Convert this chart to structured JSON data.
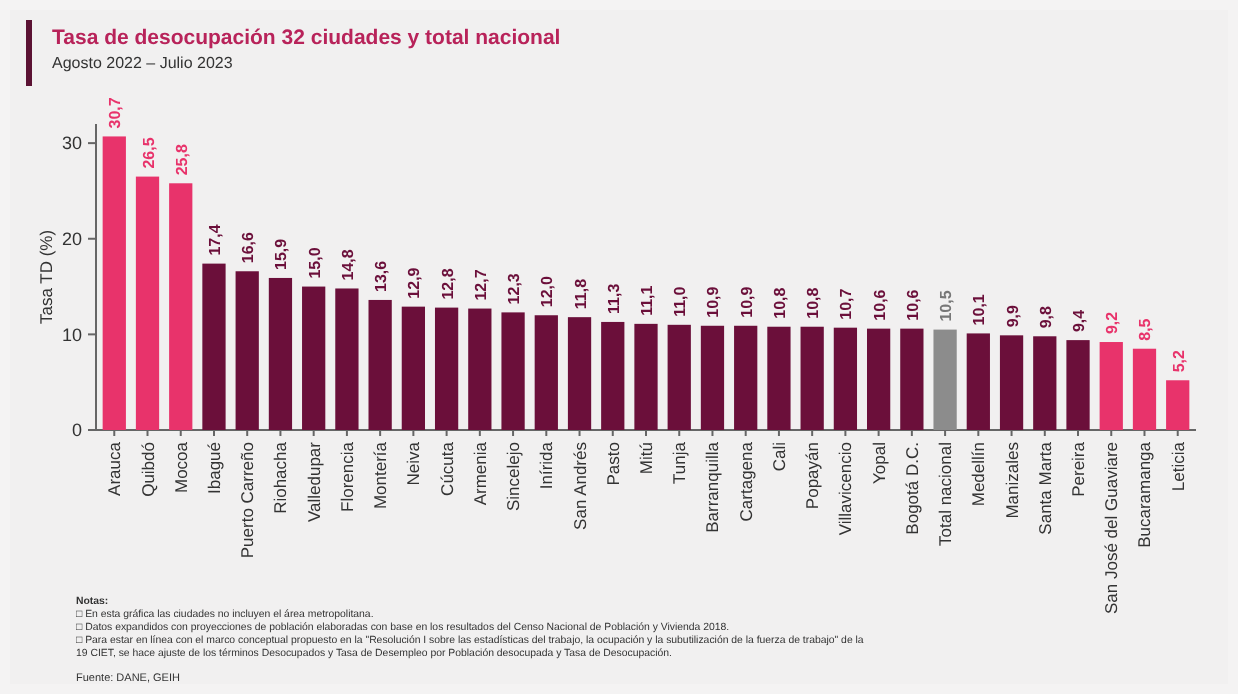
{
  "chart_data": {
    "type": "bar",
    "title": "Tasa de desocupación 32 ciudades y total nacional",
    "subtitle": "Agosto 2022 – Julio 2023",
    "ylabel": "Tasa TD (%)",
    "categories": [
      "Arauca",
      "Quibdó",
      "Mocoa",
      "Ibagué",
      "Puerto Carreño",
      "Riohacha",
      "Valledupar",
      "Florencia",
      "Montería",
      "Neiva",
      "Cúcuta",
      "Armenia",
      "Sincelejo",
      "Inírida",
      "San Andrés",
      "Pasto",
      "Mitú",
      "Tunja",
      "Barranquilla",
      "Cartagena",
      "Cali",
      "Popayán",
      "Villavicencio",
      "Yopal",
      "Bogotá D.C.",
      "Total nacional",
      "Medellín",
      "Manizales",
      "Santa Marta",
      "Pereira",
      "San José del Guaviare",
      "Bucaramanga",
      "Leticia"
    ],
    "values": [
      30.7,
      26.5,
      25.8,
      17.4,
      16.6,
      15.9,
      15.0,
      14.8,
      13.6,
      12.9,
      12.8,
      12.7,
      12.3,
      12.0,
      11.8,
      11.3,
      11.1,
      11.0,
      10.9,
      10.9,
      10.8,
      10.8,
      10.7,
      10.6,
      10.6,
      10.5,
      10.1,
      9.9,
      9.8,
      9.4,
      9.2,
      8.5,
      5.2
    ],
    "value_labels": [
      "30,7",
      "26,5",
      "25,8",
      "17,4",
      "16,6",
      "15,9",
      "15,0",
      "14,8",
      "13,6",
      "12,9",
      "12,8",
      "12,7",
      "12,3",
      "12,0",
      "11,8",
      "11,3",
      "11,1",
      "11,0",
      "10,9",
      "10,9",
      "10,8",
      "10,8",
      "10,7",
      "10,6",
      "10,6",
      "10,5",
      "10,1",
      "9,9",
      "9,8",
      "9,4",
      "9,2",
      "8,5",
      "5,2"
    ],
    "colors": [
      "#e8336b",
      "#e8336b",
      "#e8336b",
      "#6b0f3a",
      "#6b0f3a",
      "#6b0f3a",
      "#6b0f3a",
      "#6b0f3a",
      "#6b0f3a",
      "#6b0f3a",
      "#6b0f3a",
      "#6b0f3a",
      "#6b0f3a",
      "#6b0f3a",
      "#6b0f3a",
      "#6b0f3a",
      "#6b0f3a",
      "#6b0f3a",
      "#6b0f3a",
      "#6b0f3a",
      "#6b0f3a",
      "#6b0f3a",
      "#6b0f3a",
      "#6b0f3a",
      "#6b0f3a",
      "#8c8c8c",
      "#6b0f3a",
      "#6b0f3a",
      "#6b0f3a",
      "#6b0f3a",
      "#e8336b",
      "#e8336b",
      "#e8336b"
    ],
    "ylim": [
      0,
      32
    ],
    "yticks": [
      0,
      10,
      20,
      30
    ],
    "grid": false,
    "annotations": [
      "Notas:",
      "□ En esta gráfica las ciudades no incluyen el área metropolitana.",
      "□ Datos expandidos con proyecciones de población elaboradas con base en los resultados del Censo Nacional de Población y Vivienda 2018.",
      "□ Para estar en línea con el marco conceptual propuesto en la \"Resolución I sobre las estadísticas del trabajo, la ocupación y la subutilización de la fuerza de trabajo\" de la 19 CIET, se hace ajuste de los términos Desocupados y Tasa de Desempleo por Población desocupada y Tasa de Desocupación.",
      "Fuente: DANE, GEIH"
    ]
  }
}
